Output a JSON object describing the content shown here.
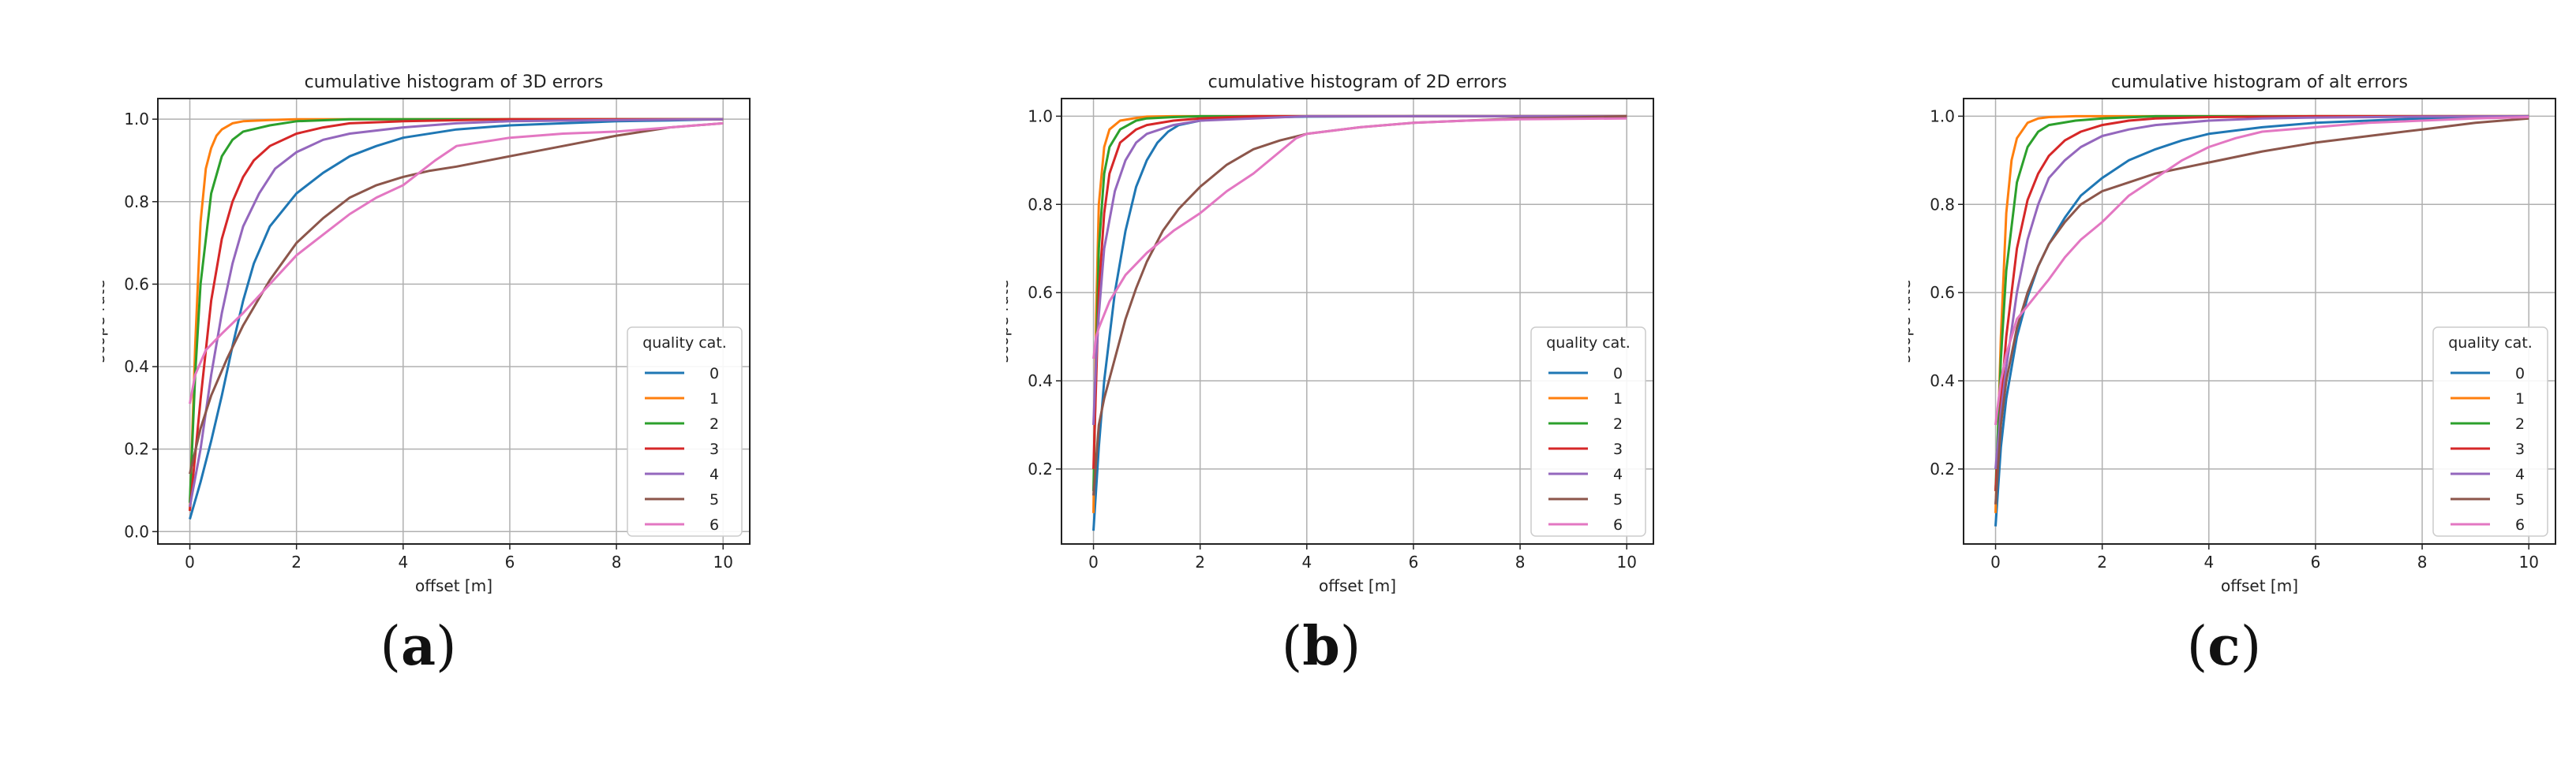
{
  "figure": {
    "captions": [
      "(a)",
      "(b)",
      "(c)"
    ],
    "caption_letters": [
      "a",
      "b",
      "c"
    ]
  },
  "series_colors": [
    "#1f77b4",
    "#ff7f0e",
    "#2ca02c",
    "#d62728",
    "#9467bd",
    "#8c564b",
    "#e377c2"
  ],
  "chart_data": [
    {
      "type": "line",
      "title": "cumulative histogram of 3D errors",
      "xlabel": "offset [m]",
      "ylabel": "scope rate",
      "xlim": [
        -0.6,
        10.5
      ],
      "ylim": [
        -0.03,
        1.05
      ],
      "xticks": [
        0,
        2,
        4,
        6,
        8,
        10
      ],
      "yticks": [
        0.0,
        0.2,
        0.4,
        0.6,
        0.8,
        1.0
      ],
      "ytick_labels": [
        "0.0",
        "0.2",
        "0.4",
        "0.6",
        "0.8",
        "1.0"
      ],
      "grid": true,
      "legend": {
        "title": "quality cat.",
        "placement": "lower right"
      },
      "series": [
        {
          "name": "0",
          "x": [
            0,
            0.2,
            0.4,
            0.6,
            0.8,
            1.0,
            1.2,
            1.5,
            2.0,
            2.5,
            3.0,
            3.5,
            4.0,
            5.0,
            6.0,
            7.0,
            8.0,
            9.0,
            10.0
          ],
          "y": [
            0.03,
            0.12,
            0.22,
            0.33,
            0.45,
            0.56,
            0.65,
            0.74,
            0.82,
            0.87,
            0.91,
            0.935,
            0.955,
            0.975,
            0.985,
            0.99,
            0.995,
            0.997,
            1.0
          ]
        },
        {
          "name": "1",
          "x": [
            0,
            0.1,
            0.2,
            0.3,
            0.4,
            0.5,
            0.6,
            0.8,
            1.0,
            1.5,
            2.0,
            10.0
          ],
          "y": [
            0.05,
            0.45,
            0.75,
            0.88,
            0.93,
            0.96,
            0.975,
            0.99,
            0.995,
            0.998,
            1.0,
            1.0
          ]
        },
        {
          "name": "2",
          "x": [
            0,
            0.1,
            0.2,
            0.4,
            0.6,
            0.8,
            1.0,
            1.5,
            2.0,
            3.0,
            10.0
          ],
          "y": [
            0.07,
            0.38,
            0.6,
            0.82,
            0.91,
            0.95,
            0.97,
            0.985,
            0.995,
            1.0,
            1.0
          ]
        },
        {
          "name": "3",
          "x": [
            0,
            0.2,
            0.4,
            0.6,
            0.8,
            1.0,
            1.2,
            1.5,
            2.0,
            2.5,
            3.0,
            4.0,
            6.0,
            10.0
          ],
          "y": [
            0.05,
            0.32,
            0.56,
            0.71,
            0.8,
            0.86,
            0.9,
            0.935,
            0.965,
            0.98,
            0.99,
            0.995,
            1.0,
            1.0
          ]
        },
        {
          "name": "4",
          "x": [
            0,
            0.2,
            0.4,
            0.6,
            0.8,
            1.0,
            1.3,
            1.6,
            2.0,
            2.5,
            3.0,
            4.0,
            5.0,
            6.0,
            8.0,
            10.0
          ],
          "y": [
            0.06,
            0.2,
            0.38,
            0.53,
            0.65,
            0.74,
            0.82,
            0.88,
            0.92,
            0.95,
            0.965,
            0.98,
            0.99,
            0.995,
            0.998,
            1.0
          ]
        },
        {
          "name": "5",
          "x": [
            0,
            0.2,
            0.4,
            0.7,
            1.0,
            1.5,
            2.0,
            2.5,
            3.0,
            3.5,
            4.0,
            4.5,
            5.0,
            6.0,
            7.0,
            8.0,
            9.0,
            10.0
          ],
          "y": [
            0.14,
            0.25,
            0.33,
            0.42,
            0.5,
            0.61,
            0.7,
            0.76,
            0.81,
            0.84,
            0.86,
            0.875,
            0.885,
            0.91,
            0.935,
            0.96,
            0.98,
            0.99
          ]
        },
        {
          "name": "6",
          "x": [
            0,
            0.1,
            0.3,
            0.6,
            1.0,
            1.5,
            2.0,
            2.5,
            3.0,
            3.5,
            4.0,
            4.3,
            4.6,
            5.0,
            6.0,
            7.0,
            8.0,
            9.0,
            10.0
          ],
          "y": [
            0.31,
            0.38,
            0.44,
            0.48,
            0.53,
            0.6,
            0.67,
            0.72,
            0.77,
            0.81,
            0.84,
            0.87,
            0.9,
            0.935,
            0.955,
            0.965,
            0.97,
            0.98,
            0.99
          ]
        }
      ]
    },
    {
      "type": "line",
      "title": "cumulative histogram of 2D errors",
      "xlabel": "offset [m]",
      "ylabel": "scope rate",
      "xlim": [
        -0.6,
        10.5
      ],
      "ylim": [
        0.03,
        1.04
      ],
      "xticks": [
        0,
        2,
        4,
        6,
        8,
        10
      ],
      "yticks": [
        0.2,
        0.4,
        0.6,
        0.8,
        1.0
      ],
      "ytick_labels": [
        "0.2",
        "0.4",
        "0.6",
        "0.8",
        "1.0"
      ],
      "grid": true,
      "legend": {
        "title": "quality cat.",
        "placement": "lower right"
      },
      "series": [
        {
          "name": "0",
          "x": [
            0,
            0.1,
            0.2,
            0.4,
            0.6,
            0.8,
            1.0,
            1.2,
            1.4,
            1.6,
            2.0,
            2.5,
            3.0,
            4.0,
            6.0,
            10.0
          ],
          "y": [
            0.06,
            0.25,
            0.4,
            0.6,
            0.74,
            0.84,
            0.9,
            0.94,
            0.965,
            0.98,
            0.99,
            0.995,
            0.997,
            0.999,
            1.0,
            1.0
          ]
        },
        {
          "name": "1",
          "x": [
            0,
            0.05,
            0.1,
            0.2,
            0.3,
            0.5,
            0.8,
            1.0,
            1.5,
            10.0
          ],
          "y": [
            0.1,
            0.55,
            0.8,
            0.93,
            0.97,
            0.99,
            0.996,
            0.999,
            1.0,
            1.0
          ]
        },
        {
          "name": "2",
          "x": [
            0,
            0.05,
            0.1,
            0.2,
            0.3,
            0.5,
            0.8,
            1.0,
            1.5,
            2.0,
            10.0
          ],
          "y": [
            0.15,
            0.45,
            0.7,
            0.87,
            0.93,
            0.97,
            0.99,
            0.995,
            0.998,
            1.0,
            1.0
          ]
        },
        {
          "name": "3",
          "x": [
            0,
            0.05,
            0.1,
            0.2,
            0.3,
            0.5,
            0.8,
            1.0,
            1.5,
            2.0,
            3.0,
            10.0
          ],
          "y": [
            0.2,
            0.4,
            0.6,
            0.78,
            0.87,
            0.94,
            0.97,
            0.98,
            0.99,
            0.995,
            1.0,
            1.0
          ]
        },
        {
          "name": "4",
          "x": [
            0,
            0.05,
            0.1,
            0.2,
            0.4,
            0.6,
            0.8,
            1.0,
            1.5,
            2.0,
            3.0,
            4.0,
            10.0
          ],
          "y": [
            0.3,
            0.45,
            0.55,
            0.7,
            0.83,
            0.9,
            0.94,
            0.96,
            0.98,
            0.99,
            0.995,
            1.0,
            1.0
          ]
        },
        {
          "name": "5",
          "x": [
            0,
            0.1,
            0.2,
            0.4,
            0.6,
            0.8,
            1.0,
            1.3,
            1.6,
            2.0,
            2.5,
            3.0,
            3.5,
            4.0,
            5.0,
            6.0,
            8.0,
            10.0
          ],
          "y": [
            0.14,
            0.3,
            0.36,
            0.45,
            0.54,
            0.61,
            0.67,
            0.74,
            0.79,
            0.84,
            0.89,
            0.925,
            0.945,
            0.96,
            0.975,
            0.985,
            0.995,
            1.0
          ]
        },
        {
          "name": "6",
          "x": [
            0,
            0.05,
            0.1,
            0.3,
            0.6,
            1.0,
            1.5,
            2.0,
            2.5,
            3.0,
            3.5,
            3.8,
            4.0,
            5.0,
            6.0,
            7.0,
            8.0,
            10.0
          ],
          "y": [
            0.45,
            0.5,
            0.52,
            0.58,
            0.64,
            0.69,
            0.74,
            0.78,
            0.83,
            0.87,
            0.92,
            0.95,
            0.96,
            0.975,
            0.985,
            0.99,
            0.993,
            0.995
          ]
        }
      ]
    },
    {
      "type": "line",
      "title": "cumulative histogram of alt errors",
      "xlabel": "offset [m]",
      "ylabel": "scope rate",
      "xlim": [
        -0.6,
        10.5
      ],
      "ylim": [
        0.03,
        1.04
      ],
      "xticks": [
        0,
        2,
        4,
        6,
        8,
        10
      ],
      "yticks": [
        0.2,
        0.4,
        0.6,
        0.8,
        1.0
      ],
      "ytick_labels": [
        "0.2",
        "0.4",
        "0.6",
        "0.8",
        "1.0"
      ],
      "grid": true,
      "legend": {
        "title": "quality cat.",
        "placement": "lower right"
      },
      "series": [
        {
          "name": "0",
          "x": [
            0,
            0.1,
            0.2,
            0.4,
            0.6,
            0.8,
            1.0,
            1.3,
            1.6,
            2.0,
            2.5,
            3.0,
            3.5,
            4.0,
            5.0,
            6.0,
            7.0,
            8.0,
            9.0,
            10.0
          ],
          "y": [
            0.07,
            0.25,
            0.36,
            0.5,
            0.59,
            0.66,
            0.71,
            0.77,
            0.82,
            0.86,
            0.9,
            0.925,
            0.945,
            0.96,
            0.975,
            0.985,
            0.99,
            0.995,
            0.998,
            1.0
          ]
        },
        {
          "name": "1",
          "x": [
            0,
            0.1,
            0.2,
            0.3,
            0.4,
            0.6,
            0.8,
            1.0,
            1.5,
            10.0
          ],
          "y": [
            0.1,
            0.5,
            0.78,
            0.9,
            0.95,
            0.985,
            0.995,
            0.998,
            1.0,
            1.0
          ]
        },
        {
          "name": "2",
          "x": [
            0,
            0.1,
            0.2,
            0.4,
            0.6,
            0.8,
            1.0,
            1.5,
            2.0,
            3.0,
            10.0
          ],
          "y": [
            0.15,
            0.45,
            0.65,
            0.85,
            0.93,
            0.965,
            0.98,
            0.99,
            0.995,
            1.0,
            1.0
          ]
        },
        {
          "name": "3",
          "x": [
            0,
            0.1,
            0.2,
            0.4,
            0.6,
            0.8,
            1.0,
            1.3,
            1.6,
            2.0,
            2.5,
            3.0,
            4.0,
            6.0,
            10.0
          ],
          "y": [
            0.15,
            0.35,
            0.5,
            0.7,
            0.81,
            0.87,
            0.91,
            0.945,
            0.965,
            0.98,
            0.99,
            0.995,
            0.998,
            1.0,
            1.0
          ]
        },
        {
          "name": "4",
          "x": [
            0,
            0.1,
            0.2,
            0.4,
            0.6,
            0.8,
            1.0,
            1.3,
            1.6,
            2.0,
            2.5,
            3.0,
            4.0,
            5.0,
            6.0,
            8.0,
            10.0
          ],
          "y": [
            0.2,
            0.33,
            0.43,
            0.6,
            0.72,
            0.8,
            0.86,
            0.9,
            0.93,
            0.955,
            0.97,
            0.98,
            0.99,
            0.995,
            0.997,
            0.999,
            1.0
          ]
        },
        {
          "name": "5",
          "x": [
            0,
            0.1,
            0.2,
            0.4,
            0.6,
            0.8,
            1.0,
            1.3,
            1.6,
            2.0,
            2.5,
            3.0,
            4.0,
            5.0,
            6.0,
            7.0,
            8.0,
            9.0,
            10.0
          ],
          "y": [
            0.12,
            0.3,
            0.4,
            0.52,
            0.6,
            0.66,
            0.71,
            0.76,
            0.8,
            0.83,
            0.85,
            0.87,
            0.895,
            0.92,
            0.94,
            0.955,
            0.97,
            0.985,
            0.995
          ]
        },
        {
          "name": "6",
          "x": [
            0,
            0.1,
            0.2,
            0.4,
            0.6,
            0.8,
            1.0,
            1.3,
            1.6,
            2.0,
            2.5,
            3.0,
            3.5,
            4.0,
            4.5,
            5.0,
            6.0,
            7.0,
            8.0,
            9.0,
            10.0
          ],
          "y": [
            0.3,
            0.4,
            0.46,
            0.54,
            0.57,
            0.6,
            0.63,
            0.68,
            0.72,
            0.76,
            0.82,
            0.86,
            0.9,
            0.93,
            0.95,
            0.965,
            0.975,
            0.985,
            0.99,
            0.995,
            0.998
          ]
        }
      ]
    }
  ]
}
